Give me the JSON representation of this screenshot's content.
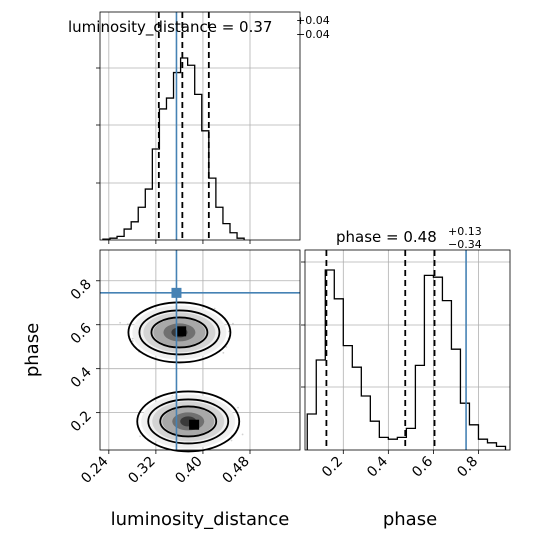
{
  "chart_data": {
    "type": "corner",
    "colors": {
      "truth": "#4682b4",
      "hist": "#000000",
      "scatter": "#808080",
      "grid": "#b0b0b0"
    },
    "grid": true,
    "parameters": [
      {
        "name": "luminosity_distance",
        "xlabel": "luminosity_distance",
        "title": {
          "main": "luminosity_distance = 0.37",
          "plus": "+0.04",
          "minus": "−0.04"
        },
        "range": [
          0.225,
          0.565
        ],
        "xticks": [
          "0.24",
          "0.32",
          "0.40",
          "0.48"
        ],
        "truth": 0.355,
        "quantiles": [
          0.325,
          0.365,
          0.41
        ]
      },
      {
        "name": "phase",
        "xlabel": "phase",
        "ylabel": "phase",
        "title": {
          "main": "phase = 0.48",
          "plus": "+0.13",
          "minus": "−0.34"
        },
        "range": [
          0.03,
          0.94
        ],
        "xticks": [
          "0.2",
          "0.4",
          "0.6",
          "0.8"
        ],
        "yticks": [
          "0.2",
          "0.4",
          "0.6",
          "0.8"
        ],
        "truth": 0.745,
        "quantiles": [
          0.125,
          0.475,
          0.605
        ]
      }
    ],
    "hist_luminosity_distance": {
      "bin_edges": [
        0.23,
        0.242,
        0.254,
        0.266,
        0.278,
        0.29,
        0.302,
        0.314,
        0.326,
        0.338,
        0.35,
        0.362,
        0.374,
        0.386,
        0.398,
        0.41,
        0.422,
        0.434,
        0.446,
        0.458,
        0.47
      ],
      "counts": [
        0.5,
        1,
        2,
        6,
        10,
        18,
        28,
        50,
        72,
        78,
        92,
        100,
        96,
        80,
        60,
        34,
        18,
        9,
        4,
        1
      ]
    },
    "hist_phase": {
      "bin_edges": [
        0.04,
        0.08,
        0.12,
        0.16,
        0.2,
        0.24,
        0.28,
        0.32,
        0.36,
        0.4,
        0.44,
        0.48,
        0.52,
        0.56,
        0.6,
        0.64,
        0.68,
        0.72,
        0.76,
        0.8,
        0.84,
        0.88,
        0.92
      ],
      "counts": [
        20,
        50,
        100,
        84,
        58,
        46,
        30,
        16,
        7,
        6,
        7,
        12,
        47,
        97,
        96,
        83,
        56,
        26,
        14,
        6,
        4,
        2
      ]
    },
    "posterior_2d": {
      "modes": [
        {
          "center_luminosity_distance": 0.36,
          "center_phase": 0.565,
          "peak_luminosity_distance": 0.363,
          "peak_phase": 0.57
        },
        {
          "center_luminosity_distance": 0.375,
          "center_phase": 0.16,
          "peak_luminosity_distance": 0.385,
          "peak_phase": 0.145
        }
      ]
    }
  }
}
